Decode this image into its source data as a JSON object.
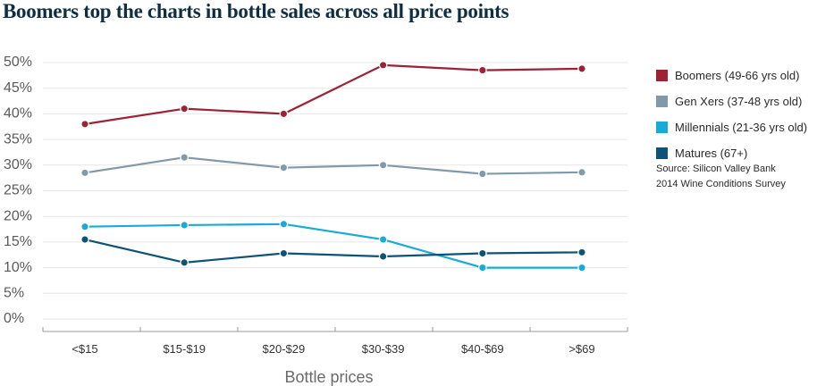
{
  "title": "Boomers top the charts in bottle sales across all price points",
  "source": {
    "line1": "Source: Silicon Valley Bank",
    "line2": "2014 Wine Conditions Survey"
  },
  "chart_data": {
    "type": "line",
    "title": "Boomers top the charts in bottle sales across all price points",
    "xlabel": "Bottle prices",
    "ylabel": "",
    "ylim": [
      0,
      50
    ],
    "yticks": [
      "50%",
      "45%",
      "40%",
      "35%",
      "30%",
      "25%",
      "20%",
      "15%",
      "10%",
      "5%",
      "0%"
    ],
    "ytick_values": [
      50,
      45,
      40,
      35,
      30,
      25,
      20,
      15,
      10,
      5,
      0
    ],
    "categories": [
      "<$15",
      "$15-$19",
      "$20-$29",
      "$30-$39",
      "$40-$69",
      ">$69"
    ],
    "grid": true,
    "legend_position": "right",
    "series": [
      {
        "name": "Boomers (49-66 yrs old)",
        "color": "#9b2335",
        "values": [
          38,
          41,
          40,
          49.5,
          48.5,
          48.8
        ]
      },
      {
        "name": "Gen Xers (37-48 yrs old)",
        "color": "#8099ab",
        "values": [
          28.5,
          31.5,
          29.5,
          30,
          28.3,
          28.6
        ]
      },
      {
        "name": "Millennials (21-36 yrs old)",
        "color": "#1aaad8",
        "values": [
          18,
          18.3,
          18.5,
          15.5,
          10,
          10
        ]
      },
      {
        "name": "Matures (67+)",
        "color": "#0e5377",
        "values": [
          15.5,
          11,
          12.8,
          12.2,
          12.8,
          13
        ]
      }
    ]
  }
}
